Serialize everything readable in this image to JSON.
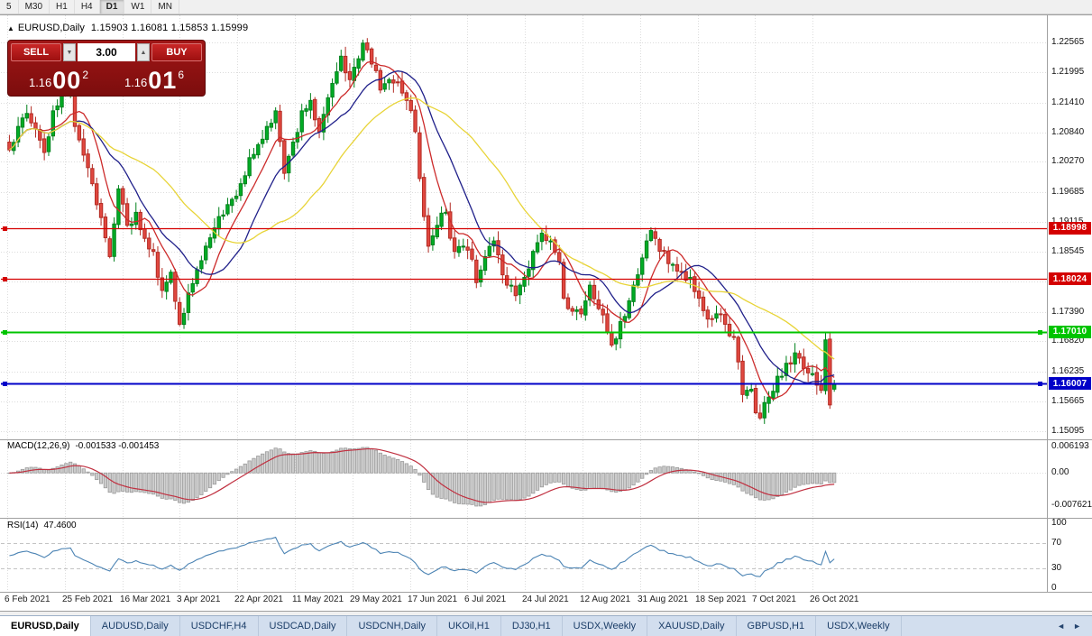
{
  "toolbar": {
    "timeframes": [
      "5",
      "M30",
      "H1",
      "H4",
      "D1",
      "W1",
      "MN"
    ],
    "active": "D1"
  },
  "chart_header": {
    "collapse_icon": "▲",
    "symbol": "EURUSD,Daily",
    "ohlc": "1.15903 1.16081 1.15853 1.15999"
  },
  "trade_panel": {
    "sell_label": "SELL",
    "buy_label": "BUY",
    "volume": "3.00",
    "volume_down_icon": "▼",
    "volume_up_icon": "▲",
    "sell_price": {
      "big": "1.16",
      "pips": "00",
      "sup": "2"
    },
    "buy_price": {
      "big": "1.16",
      "pips": "01",
      "sup": "6"
    }
  },
  "price_axis": {
    "ticks": [
      "1.22565",
      "1.21995",
      "1.21410",
      "1.20840",
      "1.20270",
      "1.19685",
      "1.19115",
      "1.18545",
      "1.17975",
      "1.17390",
      "1.16820",
      "1.16235",
      "1.15665",
      "1.15095"
    ]
  },
  "date_axis": {
    "labels": [
      "6 Feb 2021",
      "25 Feb 2021",
      "16 Mar 2021",
      "3 Apr 2021",
      "22 Apr 2021",
      "11 May 2021",
      "29 May 2021",
      "17 Jun 2021",
      "6 Jul 2021",
      "24 Jul 2021",
      "12 Aug 2021",
      "31 Aug 2021",
      "18 Sep 2021",
      "7 Oct 2021",
      "26 Oct 2021"
    ]
  },
  "tabs": {
    "items": [
      "EURUSD,Daily",
      "AUDUSD,Daily",
      "USDCHF,H4",
      "USDCAD,Daily",
      "USDCNH,Daily",
      "UKOil,H1",
      "DJ30,H1",
      "USDX,Weekly",
      "XAUUSD,Daily",
      "GBPUSD,H1",
      "USDX,Weekly"
    ],
    "active_index": 0,
    "scroll_left": "◄",
    "scroll_right": "►"
  },
  "chart_data": {
    "type": "candlestick",
    "title": "EURUSD,Daily",
    "symbol": "EURUSD",
    "timeframe": "Daily",
    "ohlc_display": {
      "open": "1.15903",
      "high": "1.16081",
      "low": "1.15853",
      "close": "1.15999"
    },
    "y_range": [
      1.1504,
      1.2286
    ],
    "candle_count": 190,
    "last_candle": [
      1.15903,
      1.16081,
      1.15853,
      1.15999
    ],
    "close_anchors": [
      [
        0,
        1.205
      ],
      [
        2,
        1.2095
      ],
      [
        4,
        1.212
      ],
      [
        6,
        1.209
      ],
      [
        8,
        1.2045
      ],
      [
        9,
        1.2075
      ],
      [
        10,
        1.2125
      ],
      [
        12,
        1.216
      ],
      [
        14,
        1.217
      ],
      [
        15,
        1.2095
      ],
      [
        17,
        1.204
      ],
      [
        19,
        1.1985
      ],
      [
        21,
        1.192
      ],
      [
        23,
        1.1845
      ],
      [
        25,
        1.1975
      ],
      [
        27,
        1.1905
      ],
      [
        29,
        1.193
      ],
      [
        31,
        1.188
      ],
      [
        33,
        1.1855
      ],
      [
        35,
        1.178
      ],
      [
        37,
        1.1815
      ],
      [
        39,
        1.1715
      ],
      [
        41,
        1.1775
      ],
      [
        43,
        1.182
      ],
      [
        45,
        1.1865
      ],
      [
        47,
        1.19
      ],
      [
        49,
        1.1925
      ],
      [
        51,
        1.1955
      ],
      [
        53,
        1.1985
      ],
      [
        55,
        1.2035
      ],
      [
        57,
        1.206
      ],
      [
        59,
        1.2095
      ],
      [
        61,
        1.2125
      ],
      [
        63,
        1.2005
      ],
      [
        65,
        1.2065
      ],
      [
        67,
        1.2125
      ],
      [
        69,
        1.2145
      ],
      [
        71,
        1.2085
      ],
      [
        73,
        1.215
      ],
      [
        75,
        1.22
      ],
      [
        76,
        1.223
      ],
      [
        78,
        1.2185
      ],
      [
        80,
        1.2225
      ],
      [
        81,
        1.2255
      ],
      [
        83,
        1.2215
      ],
      [
        85,
        1.2165
      ],
      [
        87,
        1.2185
      ],
      [
        89,
        1.218
      ],
      [
        91,
        1.2145
      ],
      [
        93,
        1.2085
      ],
      [
        94,
        1.1995
      ],
      [
        96,
        1.1865
      ],
      [
        98,
        1.1905
      ],
      [
        100,
        1.193
      ],
      [
        102,
        1.1855
      ],
      [
        104,
        1.1865
      ],
      [
        106,
        1.184
      ],
      [
        107,
        1.1795
      ],
      [
        109,
        1.1845
      ],
      [
        111,
        1.1875
      ],
      [
        113,
        1.181
      ],
      [
        115,
        1.179
      ],
      [
        116,
        1.177
      ],
      [
        118,
        1.1805
      ],
      [
        120,
        1.1855
      ],
      [
        122,
        1.189
      ],
      [
        124,
        1.1875
      ],
      [
        126,
        1.1835
      ],
      [
        127,
        1.1765
      ],
      [
        129,
        1.174
      ],
      [
        131,
        1.1735
      ],
      [
        133,
        1.179
      ],
      [
        135,
        1.1745
      ],
      [
        137,
        1.17
      ],
      [
        138,
        1.1675
      ],
      [
        140,
        1.172
      ],
      [
        142,
        1.176
      ],
      [
        144,
        1.181
      ],
      [
        146,
        1.1875
      ],
      [
        147,
        1.1895
      ],
      [
        148,
        1.188
      ],
      [
        150,
        1.1855
      ],
      [
        152,
        1.183
      ],
      [
        154,
        1.1815
      ],
      [
        156,
        1.1805
      ],
      [
        158,
        1.1765
      ],
      [
        160,
        1.1725
      ],
      [
        162,
        1.1735
      ],
      [
        164,
        1.1715
      ],
      [
        166,
        1.169
      ],
      [
        168,
        1.158
      ],
      [
        170,
        1.159
      ],
      [
        171,
        1.1545
      ],
      [
        172,
        1.1535
      ],
      [
        174,
        1.1575
      ],
      [
        176,
        1.1615
      ],
      [
        178,
        1.164
      ],
      [
        180,
        1.166
      ],
      [
        181,
        1.165
      ],
      [
        182,
        1.163
      ],
      [
        184,
        1.162
      ],
      [
        185,
        1.1598
      ],
      [
        186,
        1.1588
      ],
      [
        187,
        1.1685
      ],
      [
        188,
        1.156
      ],
      [
        189,
        1.15999
      ]
    ],
    "colors": {
      "up_fill": "#00AD25",
      "up_edge": "#00811B",
      "down_fill": "#E14840",
      "down_edge": "#B22A22"
    },
    "ma_lines": [
      {
        "name": "fast-ma",
        "period": 8,
        "color": "#CC2A2A"
      },
      {
        "name": "medium-ma",
        "period": 16,
        "color": "#20208A"
      },
      {
        "name": "slow-ma",
        "period": 34,
        "color": "#E8D437"
      }
    ],
    "h_lines": [
      {
        "value": 1.18998,
        "label": "1.18998",
        "color": "#D40000",
        "width": 1.3
      },
      {
        "value": 1.18024,
        "label": "1.18024",
        "color": "#D40000",
        "width": 1.3
      },
      {
        "value": 1.1701,
        "label": "1.17010",
        "color": "#00C400",
        "width": 2
      },
      {
        "value": 1.16007,
        "label": "1.16007",
        "color": "#0000C8",
        "width": 2
      }
    ],
    "macd": {
      "label": "MACD(12,26,9)",
      "values_text": "-0.001533 -0.001453",
      "fast": 12,
      "slow": 26,
      "signal": 9,
      "axis_ticks": [
        "0.006193",
        "0.00",
        "-0.007621"
      ],
      "axis_values": [
        0.006193,
        0,
        -0.007621
      ],
      "range": [
        -0.0088,
        0.0068
      ],
      "hist_color": "#cccccc",
      "hist_edge": "#9a9a9a",
      "signal_color": "#C03040"
    },
    "rsi": {
      "label": "RSI(14)",
      "value_text": "47.4600",
      "period": 14,
      "axis_ticks": [
        "100",
        "70",
        "30",
        "0"
      ],
      "levels": [
        70,
        30
      ],
      "range": [
        0,
        100
      ],
      "line_color": "#4C84B4"
    }
  }
}
